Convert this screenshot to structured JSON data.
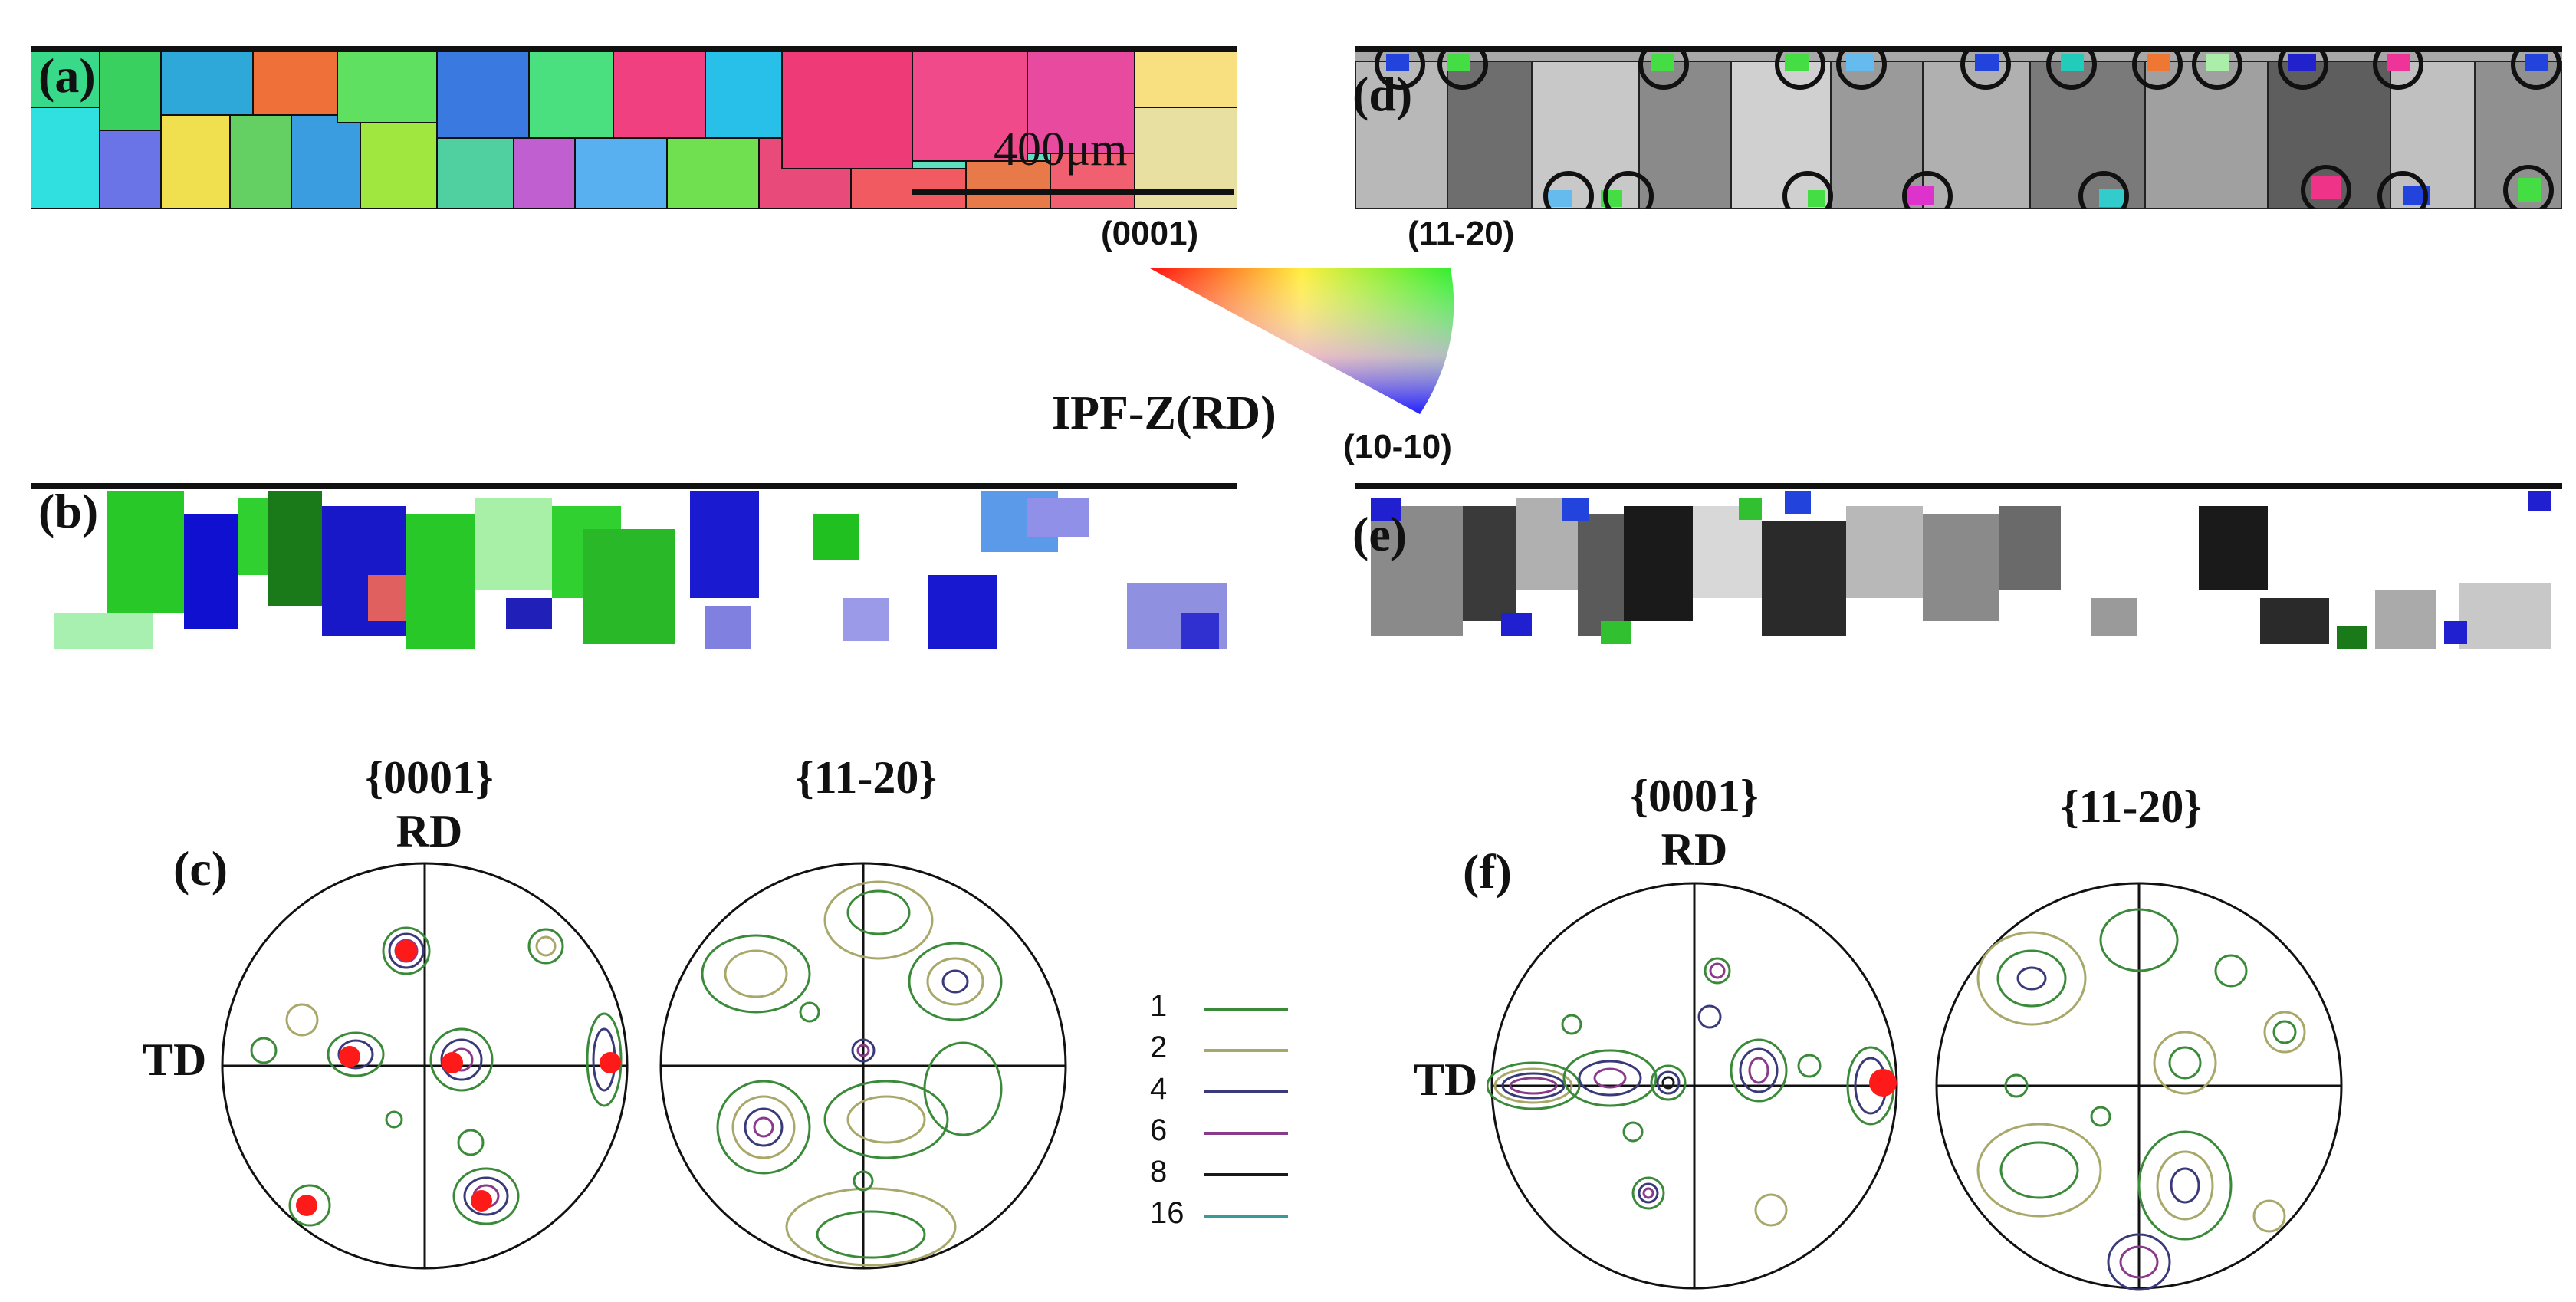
{
  "panels": {
    "a": "(a)",
    "b": "(b)",
    "c": "(c)",
    "d": "(d)",
    "e": "(e)",
    "f": "(f)"
  },
  "scale_bar": "400μm",
  "ipf_key": {
    "title": "IPF-Z(RD)",
    "corner_0001": "(0001)",
    "corner_11_20": "(11-20)",
    "corner_10_10": "(10-10)"
  },
  "pole_figures": {
    "left_title_1": "{0001}",
    "left_title_2": "{11-20}",
    "right_title_1": "{0001}",
    "right_title_2": "{11-20}",
    "rd": "RD",
    "td": "TD"
  },
  "legend": [
    {
      "label": "1",
      "color": "#3a8a3a"
    },
    {
      "label": "2",
      "color": "#a8a86a"
    },
    {
      "label": "4",
      "color": "#3a3a7a"
    },
    {
      "label": "6",
      "color": "#8a3a8a"
    },
    {
      "label": "8",
      "color": "#1a1a1a"
    },
    {
      "label": "16",
      "color": "#3a9a9a"
    }
  ]
}
